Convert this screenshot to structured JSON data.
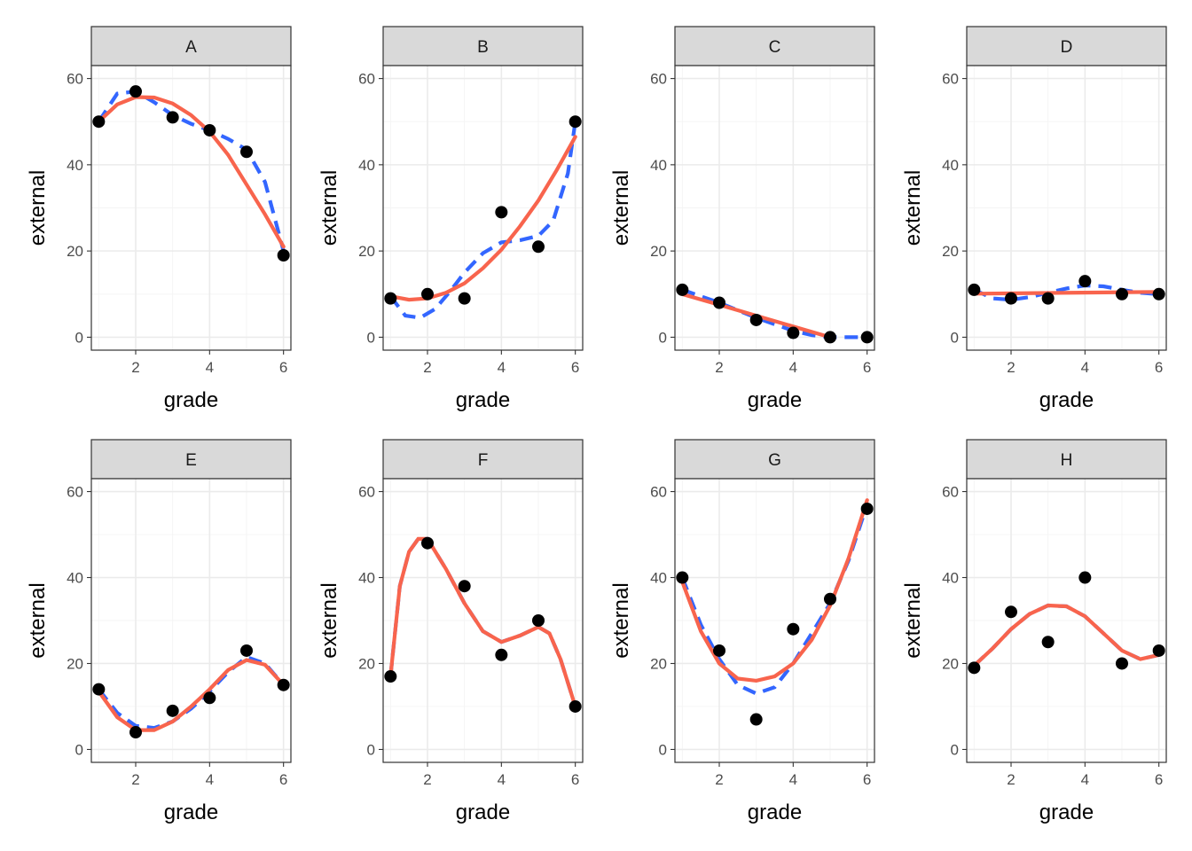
{
  "chart_data": {
    "type": "scatter",
    "layout": "facet-grid-2x4",
    "xlabel": "grade",
    "ylabel": "external",
    "x_ticks": [
      2,
      4,
      6
    ],
    "y_ticks": [
      0,
      20,
      40,
      60
    ],
    "xlim": [
      0.8,
      6.2
    ],
    "ylim": [
      -3,
      63
    ],
    "grid": true,
    "line_colors": {
      "dashed": "#3366ff",
      "solid": "#f8644d"
    },
    "panels": [
      {
        "label": "A",
        "x": [
          1,
          2,
          3,
          4,
          5,
          6
        ],
        "y": [
          50,
          57,
          51,
          48,
          43,
          19
        ],
        "dashed_curve": [
          [
            1,
            50
          ],
          [
            1.5,
            56.5
          ],
          [
            2,
            57
          ],
          [
            2.5,
            54.5
          ],
          [
            3,
            51.5
          ],
          [
            3.5,
            49.5
          ],
          [
            4,
            48
          ],
          [
            4.5,
            46
          ],
          [
            5,
            43.5
          ],
          [
            5.5,
            36
          ],
          [
            6,
            20
          ]
        ],
        "solid_curve": [
          [
            1,
            50
          ],
          [
            1.5,
            54
          ],
          [
            2,
            55.7
          ],
          [
            2.5,
            55.6
          ],
          [
            3,
            54.2
          ],
          [
            3.5,
            51.5
          ],
          [
            4,
            47.7
          ],
          [
            4.5,
            42.3
          ],
          [
            5,
            35.4
          ],
          [
            5.5,
            28.5
          ],
          [
            6,
            21
          ]
        ]
      },
      {
        "label": "B",
        "x": [
          1,
          2,
          3,
          4,
          5,
          6
        ],
        "y": [
          9,
          10,
          9,
          29,
          21,
          50
        ],
        "dashed_curve": [
          [
            1,
            9.5
          ],
          [
            1.4,
            5
          ],
          [
            1.8,
            4.5
          ],
          [
            2.2,
            6.5
          ],
          [
            2.6,
            10.5
          ],
          [
            3,
            15
          ],
          [
            3.5,
            19.5
          ],
          [
            4,
            22
          ],
          [
            4.5,
            22.5
          ],
          [
            5,
            23.5
          ],
          [
            5.4,
            27
          ],
          [
            5.8,
            38
          ],
          [
            6,
            50
          ]
        ],
        "solid_curve": [
          [
            1,
            9.5
          ],
          [
            1.5,
            8.7
          ],
          [
            2,
            9
          ],
          [
            2.5,
            10.3
          ],
          [
            3,
            12.5
          ],
          [
            3.5,
            16
          ],
          [
            4,
            20.3
          ],
          [
            4.5,
            25.7
          ],
          [
            5,
            31.7
          ],
          [
            5.5,
            38.8
          ],
          [
            6,
            46.5
          ]
        ]
      },
      {
        "label": "C",
        "x": [
          1,
          2,
          3,
          4,
          5,
          6
        ],
        "y": [
          11,
          8,
          4,
          1,
          0,
          0
        ],
        "dashed_curve": [
          [
            1,
            11
          ],
          [
            2,
            8
          ],
          [
            3,
            4.5
          ],
          [
            4,
            1.5
          ],
          [
            4.5,
            0.5
          ],
          [
            5,
            0
          ],
          [
            5.5,
            0
          ],
          [
            6,
            0
          ]
        ],
        "solid_curve": [
          [
            1,
            10
          ],
          [
            2,
            7.5
          ],
          [
            3,
            5
          ],
          [
            4,
            2.5
          ],
          [
            5,
            0
          ]
        ]
      },
      {
        "label": "D",
        "x": [
          1,
          2,
          3,
          4,
          5,
          6
        ],
        "y": [
          11,
          9,
          9,
          13,
          10,
          10
        ],
        "dashed_curve": [
          [
            1,
            11
          ],
          [
            1.5,
            9
          ],
          [
            2,
            8.7
          ],
          [
            2.5,
            9.3
          ],
          [
            3,
            10.3
          ],
          [
            3.5,
            11.3
          ],
          [
            4,
            12
          ],
          [
            4.5,
            11.8
          ],
          [
            5,
            11
          ],
          [
            5.5,
            10.3
          ],
          [
            6,
            10
          ]
        ],
        "solid_curve": [
          [
            1,
            10.1
          ],
          [
            6,
            10.5
          ]
        ]
      },
      {
        "label": "E",
        "x": [
          1,
          2,
          3,
          4,
          5,
          6
        ],
        "y": [
          14,
          4,
          9,
          12,
          23,
          15
        ],
        "dashed_curve": [
          [
            1,
            14
          ],
          [
            1.5,
            8.5
          ],
          [
            2,
            5.5
          ],
          [
            2.5,
            5
          ],
          [
            3,
            6.5
          ],
          [
            3.5,
            9.5
          ],
          [
            4,
            13.5
          ],
          [
            4.5,
            18
          ],
          [
            5,
            21.5
          ],
          [
            5.5,
            20
          ],
          [
            6,
            15
          ]
        ],
        "solid_curve": [
          [
            1,
            13.5
          ],
          [
            1.5,
            7.5
          ],
          [
            2,
            4.5
          ],
          [
            2.5,
            4.5
          ],
          [
            3,
            6.5
          ],
          [
            3.5,
            10
          ],
          [
            4,
            14
          ],
          [
            4.5,
            18.5
          ],
          [
            5,
            20.8
          ],
          [
            5.5,
            19.7
          ],
          [
            6,
            15
          ]
        ]
      },
      {
        "label": "F",
        "x": [
          1,
          2,
          3,
          4,
          5,
          6
        ],
        "y": [
          17,
          48,
          38,
          22,
          30,
          10
        ],
        "dashed_curve": [
          [
            1,
            17
          ],
          [
            1.25,
            38
          ],
          [
            1.5,
            46
          ],
          [
            1.75,
            49
          ],
          [
            2,
            49
          ],
          [
            2.5,
            42
          ],
          [
            3,
            34
          ],
          [
            3.5,
            27.5
          ],
          [
            4,
            25
          ],
          [
            4.5,
            26.5
          ],
          [
            5,
            28.5
          ],
          [
            5.3,
            27
          ],
          [
            5.6,
            21
          ],
          [
            6,
            10
          ]
        ],
        "solid_curve": [
          [
            1,
            17
          ],
          [
            1.25,
            38
          ],
          [
            1.5,
            46
          ],
          [
            1.75,
            49
          ],
          [
            2,
            49
          ],
          [
            2.5,
            42
          ],
          [
            3,
            34
          ],
          [
            3.5,
            27.5
          ],
          [
            4,
            25
          ],
          [
            4.5,
            26.5
          ],
          [
            5,
            28.5
          ],
          [
            5.3,
            27
          ],
          [
            5.6,
            21
          ],
          [
            6,
            10
          ]
        ]
      },
      {
        "label": "G",
        "x": [
          1,
          2,
          3,
          4,
          5,
          6
        ],
        "y": [
          40,
          23,
          7,
          28,
          35,
          56
        ],
        "dashed_curve": [
          [
            1,
            40
          ],
          [
            1.5,
            29
          ],
          [
            2,
            21
          ],
          [
            2.5,
            15
          ],
          [
            3,
            13
          ],
          [
            3.5,
            14.5
          ],
          [
            4,
            20
          ],
          [
            4.5,
            27
          ],
          [
            5,
            34
          ],
          [
            5.5,
            44
          ],
          [
            6,
            57
          ]
        ],
        "solid_curve": [
          [
            1,
            39
          ],
          [
            1.5,
            27.5
          ],
          [
            2,
            20
          ],
          [
            2.5,
            16.5
          ],
          [
            3,
            16
          ],
          [
            3.5,
            17
          ],
          [
            4,
            20
          ],
          [
            4.5,
            25.5
          ],
          [
            5,
            33.5
          ],
          [
            5.5,
            44.5
          ],
          [
            6,
            58
          ]
        ]
      },
      {
        "label": "H",
        "x": [
          1,
          2,
          3,
          4,
          5,
          6
        ],
        "y": [
          19,
          32,
          25,
          40,
          20,
          23
        ],
        "dashed_curve": [
          [
            1,
            19.5
          ],
          [
            1.5,
            23.5
          ],
          [
            2,
            28
          ],
          [
            2.5,
            31.5
          ],
          [
            3,
            33.5
          ],
          [
            3.5,
            33.3
          ],
          [
            4,
            31
          ],
          [
            4.5,
            27
          ],
          [
            5,
            23
          ],
          [
            5.5,
            21
          ],
          [
            6,
            22
          ]
        ],
        "solid_curve": [
          [
            1,
            19.5
          ],
          [
            1.5,
            23.5
          ],
          [
            2,
            28
          ],
          [
            2.5,
            31.5
          ],
          [
            3,
            33.5
          ],
          [
            3.5,
            33.3
          ],
          [
            4,
            31
          ],
          [
            4.5,
            27
          ],
          [
            5,
            23
          ],
          [
            5.5,
            21
          ],
          [
            6,
            22
          ]
        ]
      }
    ]
  }
}
